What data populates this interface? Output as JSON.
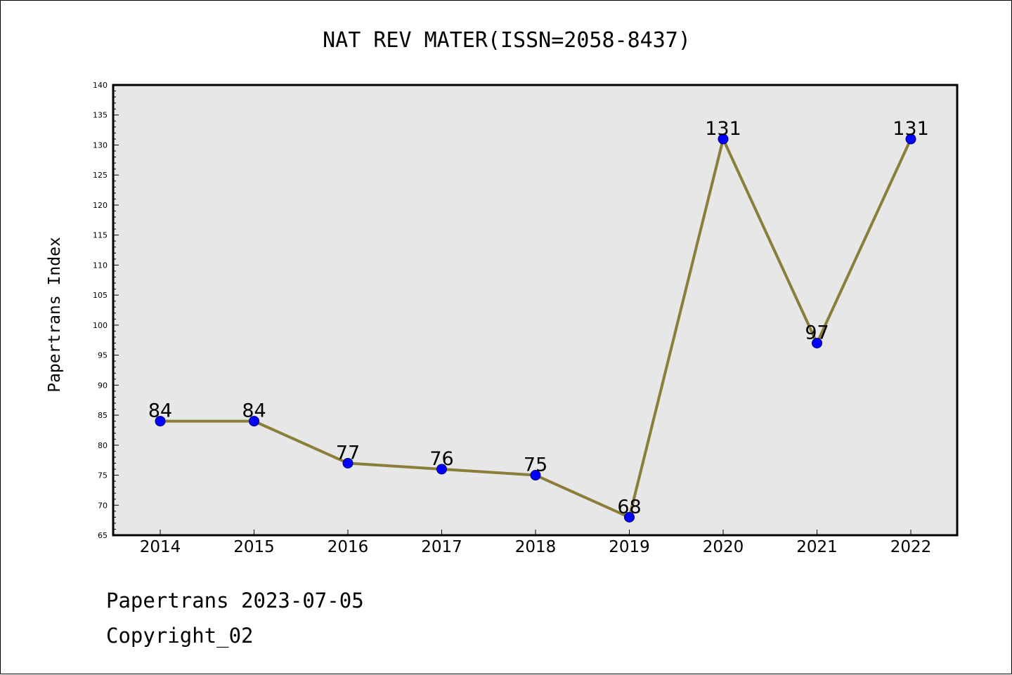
{
  "chart_data": {
    "type": "line",
    "title": "NAT REV MATER(ISSN=2058-8437)",
    "xlabel": "",
    "ylabel": "Papertrans Index",
    "categories": [
      "2014",
      "2015",
      "2016",
      "2017",
      "2018",
      "2019",
      "2020",
      "2021",
      "2022"
    ],
    "series": [
      {
        "values": [
          84,
          84,
          77,
          76,
          75,
          68,
          131,
          97,
          131
        ]
      }
    ],
    "ylim": [
      65,
      140
    ],
    "yticks": [
      65,
      70,
      75,
      80,
      85,
      90,
      95,
      100,
      105,
      110,
      115,
      120,
      125,
      130,
      135,
      140
    ],
    "grid": false,
    "data_labels": true,
    "colors": {
      "line": "#8b7d3a",
      "marker": "#0000ff",
      "plot_background": "#e7e7e7"
    }
  },
  "footer": {
    "line1": "Papertrans 2023-07-05",
    "line2": "Copyright_02"
  }
}
